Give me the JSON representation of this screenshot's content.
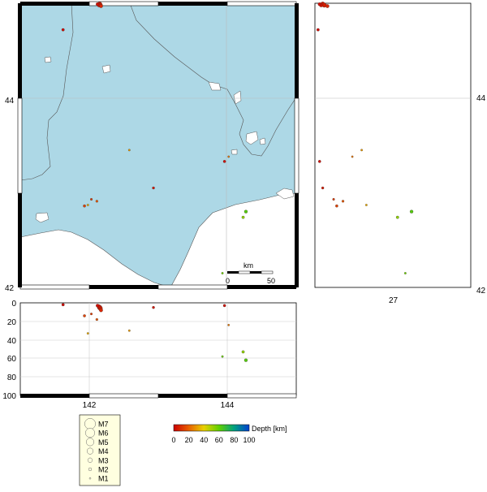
{
  "map": {
    "lat_ticks": {
      "top": "44",
      "bottom": "42"
    },
    "scalebar": {
      "unit": "km",
      "start": "0",
      "end": "50"
    },
    "colors": {
      "water": "#add8e6",
      "land": "#ffffff",
      "frame": "#000000"
    }
  },
  "right_section": {
    "lat_ticks": {
      "top": "44",
      "bottom": "42"
    },
    "x_tick": "27"
  },
  "depth_section": {
    "y_ticks": [
      "0",
      "20",
      "40",
      "60",
      "80",
      "100"
    ],
    "x_ticks": [
      "142",
      "144"
    ]
  },
  "magnitude_legend": {
    "items": [
      "M7",
      "M6",
      "M5",
      "M4",
      "M3",
      "M2",
      "M1"
    ]
  },
  "depth_colorbar": {
    "label": "Depth [km]",
    "ticks": [
      "0",
      "20",
      "40",
      "60",
      "80",
      "100"
    ],
    "colors": [
      "#cc0000",
      "#e86000",
      "#e8d000",
      "#60d000",
      "#00a080",
      "#0040d0"
    ]
  },
  "events": [
    {
      "lon": 142.15,
      "lat": 44.99,
      "depth": 5,
      "mag": 3.2
    },
    {
      "lon": 142.16,
      "lat": 44.98,
      "depth": 6,
      "mag": 3.0
    },
    {
      "lon": 142.14,
      "lat": 44.98,
      "depth": 4,
      "mag": 2.6
    },
    {
      "lon": 142.17,
      "lat": 44.97,
      "depth": 8,
      "mag": 2.4
    },
    {
      "lon": 142.12,
      "lat": 44.99,
      "depth": 3,
      "mag": 2.2
    },
    {
      "lon": 141.62,
      "lat": 44.72,
      "depth": 2,
      "mag": 1.9
    },
    {
      "lon": 142.58,
      "lat": 43.45,
      "depth": 30,
      "mag": 1.4
    },
    {
      "lon": 143.96,
      "lat": 43.33,
      "depth": 3,
      "mag": 1.8
    },
    {
      "lon": 144.02,
      "lat": 43.38,
      "depth": 24,
      "mag": 1.3
    },
    {
      "lon": 142.93,
      "lat": 43.05,
      "depth": 5,
      "mag": 1.7
    },
    {
      "lon": 141.93,
      "lat": 42.86,
      "depth": 14,
      "mag": 1.8
    },
    {
      "lon": 142.03,
      "lat": 42.93,
      "depth": 12,
      "mag": 1.5
    },
    {
      "lon": 141.98,
      "lat": 42.87,
      "depth": 33,
      "mag": 1.4
    },
    {
      "lon": 142.11,
      "lat": 42.91,
      "depth": 18,
      "mag": 1.6
    },
    {
      "lon": 144.27,
      "lat": 42.8,
      "depth": 62,
      "mag": 2.2
    },
    {
      "lon": 144.23,
      "lat": 42.74,
      "depth": 53,
      "mag": 1.9
    },
    {
      "lon": 143.93,
      "lat": 42.15,
      "depth": 58,
      "mag": 1.4
    }
  ]
}
